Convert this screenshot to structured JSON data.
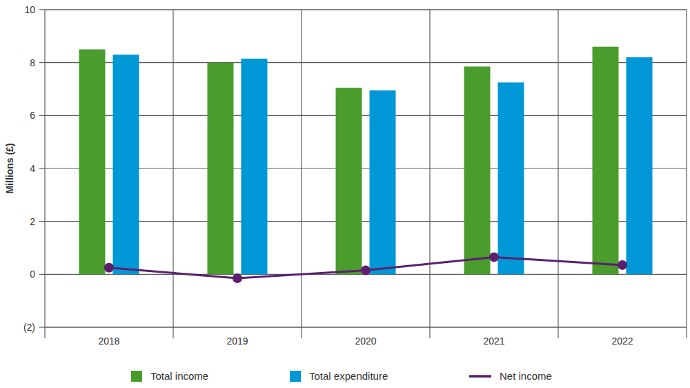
{
  "chart_data": {
    "type": "bar",
    "y_label": "Millions (£)",
    "categories": [
      "2018",
      "2019",
      "2020",
      "2021",
      "2022"
    ],
    "series": [
      {
        "name": "Total income",
        "type": "bar",
        "color": "#4a9c2d",
        "values": [
          8.5,
          8.0,
          7.05,
          7.85,
          8.6
        ]
      },
      {
        "name": "Total expenditure",
        "type": "bar",
        "color": "#0097d6",
        "values": [
          8.3,
          8.15,
          6.95,
          7.25,
          8.2
        ]
      },
      {
        "name": "Net income",
        "type": "line",
        "color": "#5b1f6e",
        "marker": "circle",
        "line_style": "solid",
        "values": [
          0.25,
          -0.15,
          0.15,
          0.65,
          0.35
        ]
      }
    ],
    "ylim": [
      -2,
      10
    ],
    "yticks": [
      {
        "value": -2,
        "label": "(2)"
      },
      0,
      2,
      4,
      6,
      8,
      10
    ],
    "grid": true,
    "legend": "bottom"
  }
}
